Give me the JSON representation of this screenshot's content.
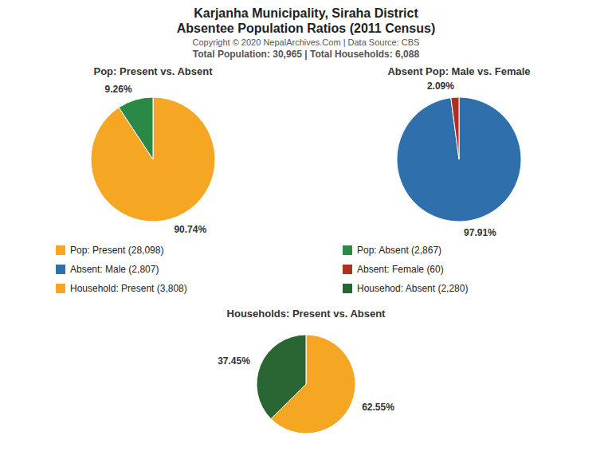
{
  "title": "Karjanha Municipality, Siraha District",
  "subtitle": "Absentee Population Ratios (2011 Census)",
  "annotations": [
    "Copyright © 2020 NepalArchives.Com | Data Source: CBS",
    "Total Population: 30,965 | Total Households: 6,088"
  ],
  "chart_data": [
    {
      "type": "pie",
      "title": "Pop: Present vs. Absent",
      "categories": [
        "Pop: Present (28,098)",
        "Pop: Absent (2,867)"
      ],
      "values": [
        90.74,
        9.26
      ],
      "value_labels": [
        "90.74%",
        "9.26%"
      ],
      "colors": [
        "#f5a623",
        "#2a8a45"
      ],
      "data_labels": true,
      "legend": "center"
    },
    {
      "type": "pie",
      "title": "Absent Pop: Male vs. Female",
      "categories": [
        "Absent: Male (2,807)",
        "Absent: Female (60)"
      ],
      "values": [
        97.91,
        2.09
      ],
      "value_labels": [
        "97.91%",
        "2.09%"
      ],
      "colors": [
        "#2e6fac",
        "#b03020"
      ],
      "data_labels": true,
      "legend": "center"
    },
    {
      "type": "pie",
      "title": "Households: Present vs. Absent",
      "categories": [
        "Household: Present (3,808)",
        "Househod: Absent (2,280)"
      ],
      "values": [
        62.55,
        37.45
      ],
      "value_labels": [
        "62.55%",
        "37.45%"
      ],
      "colors": [
        "#f5a623",
        "#2a6633"
      ],
      "data_labels": true,
      "legend": "center"
    }
  ]
}
